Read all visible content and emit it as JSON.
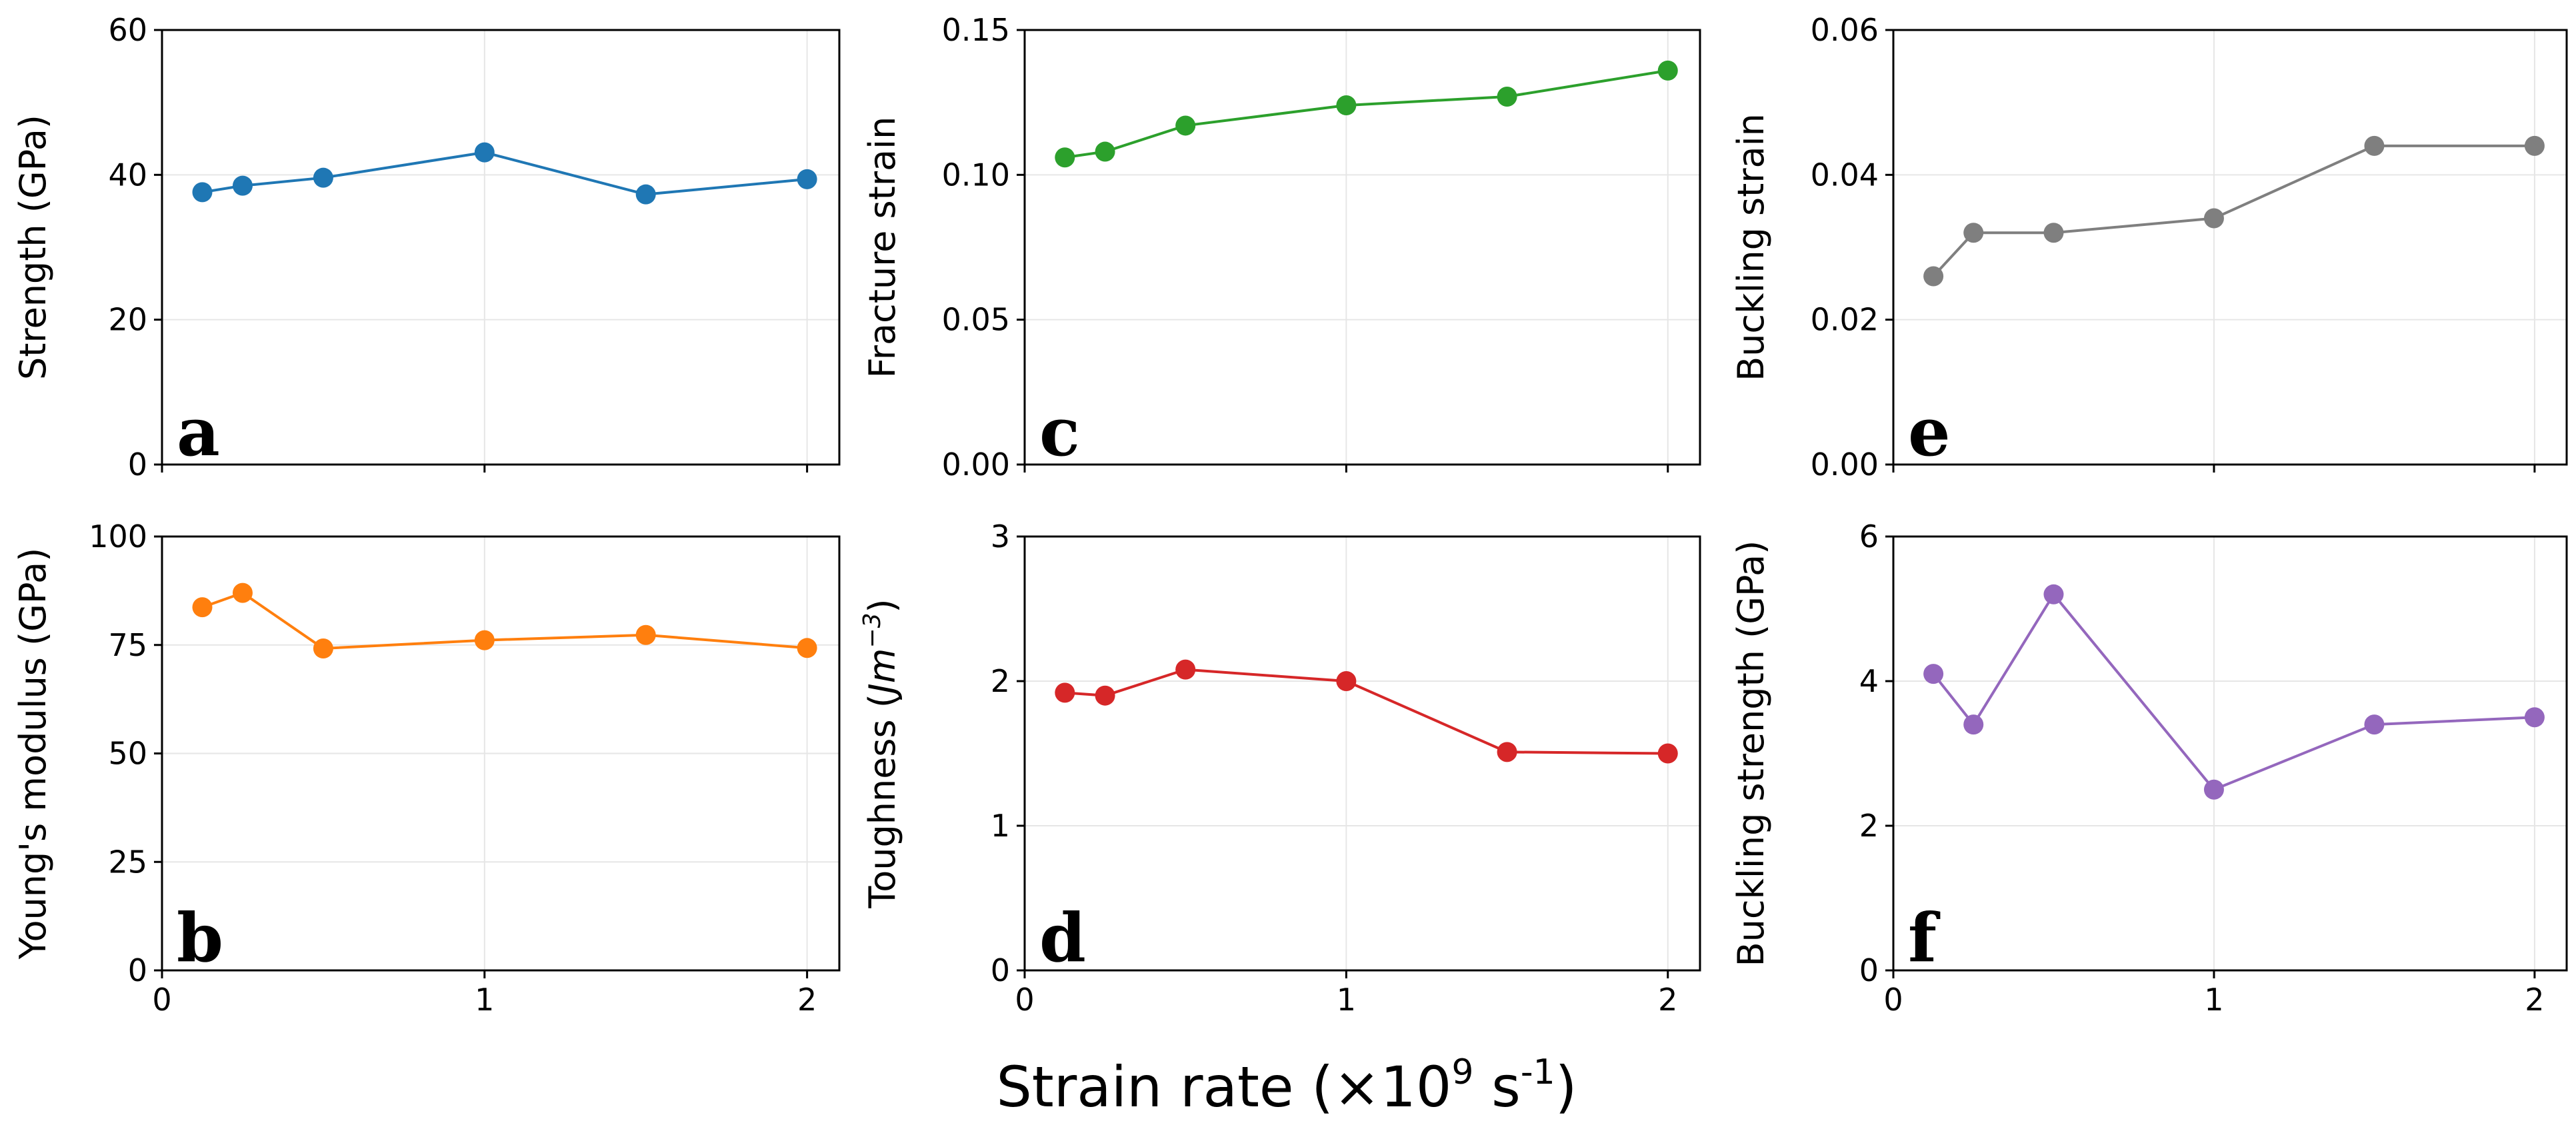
{
  "figure": {
    "common_xlabel": "Strain rate (×10",
    "common_xlabel_exp": "9",
    "common_xlabel_unit": " s",
    "common_xlabel_unit_exp": "-1",
    "common_xlabel_close": ")"
  },
  "chart_data": [
    {
      "id": "a",
      "type": "line",
      "letter": "a",
      "ylabel": "Strength (GPa)",
      "color": "#1f77b4",
      "x": [
        0.125,
        0.25,
        0.5,
        1.0,
        1.5,
        2.0
      ],
      "y": [
        37.6,
        38.5,
        39.6,
        43.1,
        37.3,
        39.4
      ],
      "xlim": [
        0,
        2.1
      ],
      "ylim": [
        0,
        60
      ],
      "yticks": [
        0,
        20,
        40,
        60
      ],
      "ytick_labels": [
        "0",
        "20",
        "40",
        "60"
      ],
      "xticks": [
        0,
        1,
        2
      ],
      "xtick_labels": [],
      "grid": true
    },
    {
      "id": "b",
      "type": "line",
      "letter": "b",
      "ylabel": "Young's modulus (GPa)",
      "color": "#ff7f0e",
      "x": [
        0.125,
        0.25,
        0.5,
        1.0,
        1.5,
        2.0
      ],
      "y": [
        83.7,
        87.0,
        74.2,
        76.1,
        77.3,
        74.3
      ],
      "xlim": [
        0,
        2.1
      ],
      "ylim": [
        0,
        100
      ],
      "yticks": [
        0,
        25,
        50,
        75,
        100
      ],
      "ytick_labels": [
        "0",
        "25",
        "50",
        "75",
        "100"
      ],
      "xticks": [
        0,
        1,
        2
      ],
      "xtick_labels": [
        "0",
        "1",
        "2"
      ],
      "grid": true
    },
    {
      "id": "c",
      "type": "line",
      "letter": "c",
      "ylabel": "Fracture strain",
      "color": "#2ca02c",
      "x": [
        0.125,
        0.25,
        0.5,
        1.0,
        1.5,
        2.0
      ],
      "y": [
        0.106,
        0.108,
        0.117,
        0.124,
        0.127,
        0.136
      ],
      "xlim": [
        0,
        2.1
      ],
      "ylim": [
        0,
        0.15
      ],
      "yticks": [
        0,
        0.05,
        0.1,
        0.15
      ],
      "ytick_labels": [
        "0.00",
        "0.05",
        "0.10",
        "0.15"
      ],
      "xticks": [
        0,
        1,
        2
      ],
      "xtick_labels": [],
      "grid": true
    },
    {
      "id": "d",
      "type": "line",
      "letter": "d",
      "ylabel": "Toughness (",
      "ylabel_italic": "Jm",
      "ylabel_exp": "−3",
      "ylabel_close": ")",
      "color": "#d62728",
      "x": [
        0.125,
        0.25,
        0.5,
        1.0,
        1.5,
        2.0
      ],
      "y": [
        1.92,
        1.9,
        2.08,
        2.0,
        1.51,
        1.5
      ],
      "xlim": [
        0,
        2.1
      ],
      "ylim": [
        0,
        3
      ],
      "yticks": [
        0,
        1,
        2,
        3
      ],
      "ytick_labels": [
        "0",
        "1",
        "2",
        "3"
      ],
      "xticks": [
        0,
        1,
        2
      ],
      "xtick_labels": [
        "0",
        "1",
        "2"
      ],
      "grid": true
    },
    {
      "id": "e",
      "type": "line",
      "letter": "e",
      "ylabel": "Buckling strain",
      "color": "#7f7f7f",
      "x": [
        0.125,
        0.25,
        0.5,
        1.0,
        1.5,
        2.0
      ],
      "y": [
        0.026,
        0.032,
        0.032,
        0.034,
        0.044,
        0.044
      ],
      "xlim": [
        0,
        2.1
      ],
      "ylim": [
        0,
        0.06
      ],
      "yticks": [
        0,
        0.02,
        0.04,
        0.06
      ],
      "ytick_labels": [
        "0.00",
        "0.02",
        "0.04",
        "0.06"
      ],
      "xticks": [
        0,
        1,
        2
      ],
      "xtick_labels": [],
      "grid": true
    },
    {
      "id": "f",
      "type": "line",
      "letter": "f",
      "ylabel": "Buckling strength (GPa)",
      "color": "#9467bd",
      "x": [
        0.125,
        0.25,
        0.5,
        1.0,
        1.5,
        2.0
      ],
      "y": [
        4.1,
        3.4,
        5.2,
        2.5,
        3.4,
        3.5
      ],
      "xlim": [
        0,
        2.1
      ],
      "ylim": [
        0,
        6
      ],
      "yticks": [
        0,
        2,
        4,
        6
      ],
      "ytick_labels": [
        "0",
        "2",
        "4",
        "6"
      ],
      "xticks": [
        0,
        1,
        2
      ],
      "xtick_labels": [
        "0",
        "1",
        "2"
      ],
      "grid": true
    }
  ]
}
